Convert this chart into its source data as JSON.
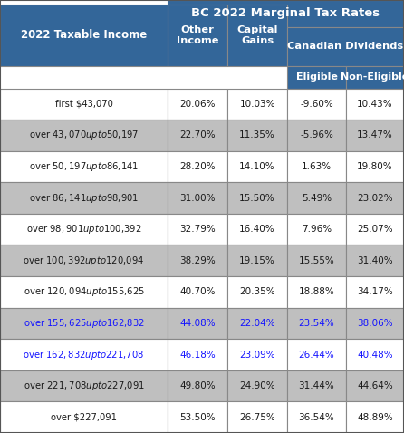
{
  "title": "BC 2022 Marginal Tax Rates",
  "header_col1": "2022 Taxable Income",
  "header_col2": "Other\nIncome",
  "header_col3": "Capital\nGains",
  "header_col4a": "Canadian Dividends",
  "header_col4b": "Eligible",
  "header_col4c": "Non-Eligible",
  "rows": [
    {
      "income": "first $43,070",
      "other": "20.06%",
      "capital": "10.03%",
      "eligible": "-9.60%",
      "non_eligible": "10.43%",
      "blue": false,
      "gray": false
    },
    {
      "income": "over $43,070 up to $50,197",
      "other": "22.70%",
      "capital": "11.35%",
      "eligible": "-5.96%",
      "non_eligible": "13.47%",
      "blue": false,
      "gray": true
    },
    {
      "income": "over $50,197 up to $86,141",
      "other": "28.20%",
      "capital": "14.10%",
      "eligible": "1.63%",
      "non_eligible": "19.80%",
      "blue": false,
      "gray": false
    },
    {
      "income": "over $86,141 up to $98,901",
      "other": "31.00%",
      "capital": "15.50%",
      "eligible": "5.49%",
      "non_eligible": "23.02%",
      "blue": false,
      "gray": true
    },
    {
      "income": "over $98,901 up to $100,392",
      "other": "32.79%",
      "capital": "16.40%",
      "eligible": "7.96%",
      "non_eligible": "25.07%",
      "blue": false,
      "gray": false
    },
    {
      "income": "over $100,392 up to $120,094",
      "other": "38.29%",
      "capital": "19.15%",
      "eligible": "15.55%",
      "non_eligible": "31.40%",
      "blue": false,
      "gray": true
    },
    {
      "income": "over $120,094 up to $155,625",
      "other": "40.70%",
      "capital": "20.35%",
      "eligible": "18.88%",
      "non_eligible": "34.17%",
      "blue": false,
      "gray": false
    },
    {
      "income": "over $155,625 up to $162,832",
      "other": "44.08%",
      "capital": "22.04%",
      "eligible": "23.54%",
      "non_eligible": "38.06%",
      "blue": true,
      "gray": true
    },
    {
      "income": "over $162,832 up to $221,708",
      "other": "46.18%",
      "capital": "23.09%",
      "eligible": "26.44%",
      "non_eligible": "40.48%",
      "blue": true,
      "gray": false
    },
    {
      "income": "over $221,708 up to $227,091",
      "other": "49.80%",
      "capital": "24.90%",
      "eligible": "31.44%",
      "non_eligible": "44.64%",
      "blue": false,
      "gray": true
    },
    {
      "income": "over $227,091",
      "other": "53.50%",
      "capital": "26.75%",
      "eligible": "36.54%",
      "non_eligible": "48.89%",
      "blue": false,
      "gray": false
    }
  ],
  "header_bg": "#336699",
  "header_text": "#FFFFFF",
  "gray_row_bg": "#BFBFBF",
  "white_row_bg": "#FFFFFF",
  "blue_text": "#1414FF",
  "black_text": "#1A1A1A",
  "border_color": "#888888",
  "figsize": [
    4.46,
    4.78
  ],
  "dpi": 100
}
